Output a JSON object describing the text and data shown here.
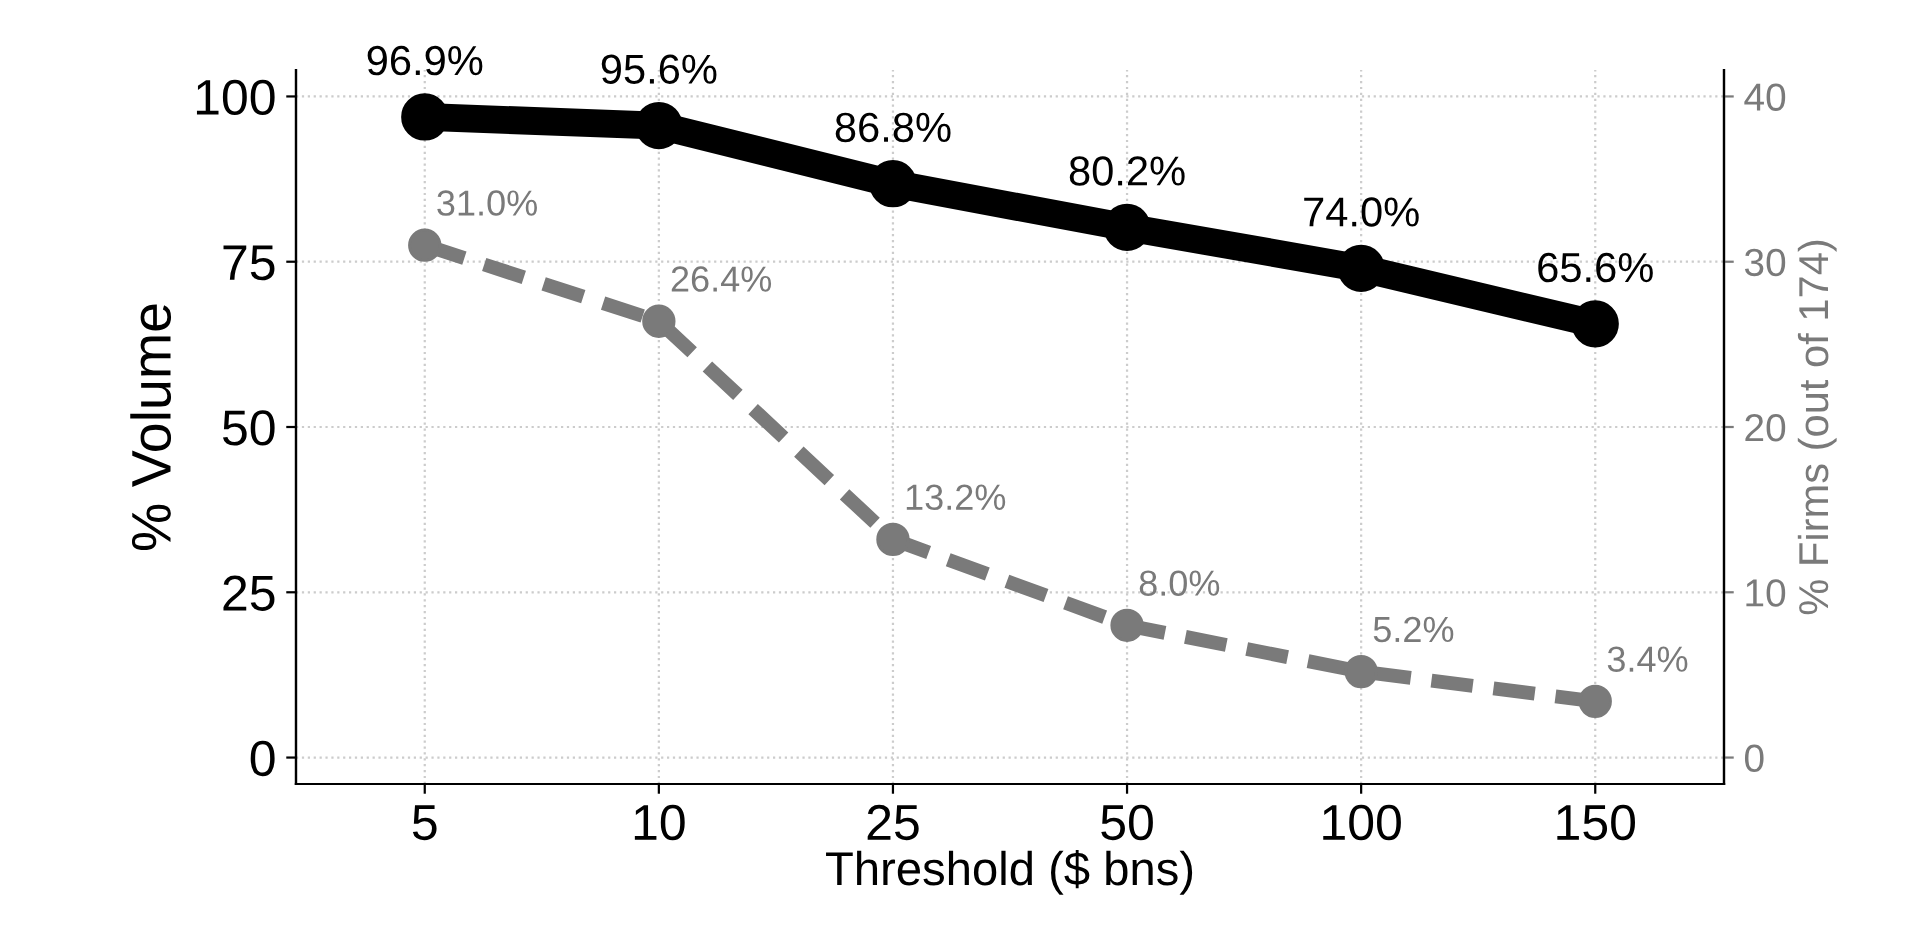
{
  "chart_data": {
    "type": "line",
    "xlabel": "Threshold ($ bns)",
    "ylabel": "% Volume",
    "y2label": "% Firms (out of 174)",
    "categories": [
      "5",
      "10",
      "25",
      "50",
      "100",
      "150"
    ],
    "series": [
      {
        "color": "#000000",
        "values": [
          96.9,
          95.6,
          86.8,
          80.2,
          74.0,
          65.6
        ],
        "value_labels": [
          "96.9%",
          "95.6%",
          "86.8%",
          "80.2%",
          "74.0%",
          "65.6%"
        ],
        "line_style": "solid"
      },
      {
        "color": "#7a7a7a",
        "axis": "y2",
        "values": [
          31.0,
          26.4,
          13.2,
          8.0,
          5.2,
          3.4
        ],
        "value_labels": [
          "31.0%",
          "26.4%",
          "13.2%",
          "8.0%",
          "5.2%",
          "3.4%"
        ],
        "line_style": "dashed"
      }
    ],
    "ylim": [
      -4,
      104
    ],
    "yticks": [
      0,
      25,
      50,
      75,
      100
    ],
    "y2lim": [
      -1.6,
      41.6
    ],
    "y2ticks": [
      0,
      10,
      20,
      30,
      40
    ],
    "grid": true,
    "marker": "circle"
  }
}
